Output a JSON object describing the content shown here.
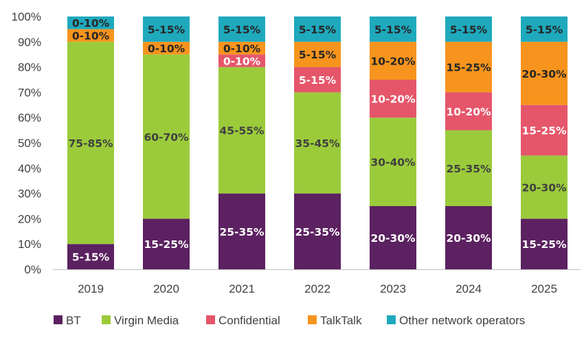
{
  "chart_data": {
    "type": "bar",
    "stacked": true,
    "categories": [
      "2019",
      "2020",
      "2021",
      "2022",
      "2023",
      "2024",
      "2025"
    ],
    "ylim": [
      0,
      100
    ],
    "yticks": [
      "0%",
      "10%",
      "20%",
      "30%",
      "40%",
      "50%",
      "60%",
      "70%",
      "80%",
      "90%",
      "100%"
    ],
    "grid": false,
    "legend_position": "bottom",
    "series": [
      {
        "name": "BT",
        "color": "#5b2160",
        "label_color": "#ffffff",
        "values": [
          10,
          20,
          30,
          30,
          25,
          25,
          20
        ],
        "labels": [
          "5-15%",
          "15-25%",
          "25-35%",
          "25-35%",
          "20-30%",
          "20-30%",
          "15-25%"
        ]
      },
      {
        "name": "Virgin Media",
        "color": "#9bcb3b",
        "label_color": "#404040",
        "values": [
          80,
          65,
          50,
          40,
          35,
          30,
          25
        ],
        "labels": [
          "75-85%",
          "60-70%",
          "45-55%",
          "35-45%",
          "30-40%",
          "25-35%",
          "20-30%"
        ]
      },
      {
        "name": "Confidential",
        "color": "#e5566a",
        "label_color": "#ffffff",
        "values": [
          0,
          0,
          5,
          10,
          15,
          15,
          20
        ],
        "labels": [
          "",
          "",
          "0-10%",
          "5-15%",
          "10-20%",
          "10-20%",
          "15-25%"
        ]
      },
      {
        "name": "TalkTalk",
        "color": "#f7941d",
        "label_color": "#262626",
        "values": [
          5,
          5,
          5,
          10,
          15,
          20,
          25
        ],
        "labels": [
          "0-10%",
          "0-10%",
          "0-10%",
          "5-15%",
          "10-20%",
          "15-25%",
          "20-30%"
        ]
      },
      {
        "name": "Other network operators",
        "color": "#1fa9bd",
        "label_color": "#262626",
        "values": [
          5,
          10,
          10,
          10,
          10,
          10,
          10
        ],
        "labels": [
          "0-10%",
          "5-15%",
          "5-15%",
          "5-15%",
          "5-15%",
          "5-15%",
          "5-15%"
        ]
      }
    ]
  }
}
